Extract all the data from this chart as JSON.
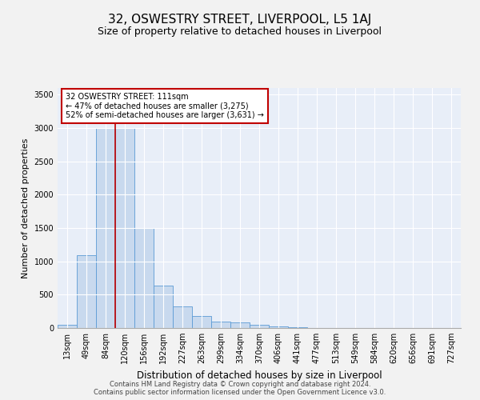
{
  "title": "32, OSWESTRY STREET, LIVERPOOL, L5 1AJ",
  "subtitle": "Size of property relative to detached houses in Liverpool",
  "xlabel": "Distribution of detached houses by size in Liverpool",
  "ylabel": "Number of detached properties",
  "categories": [
    "13sqm",
    "49sqm",
    "84sqm",
    "120sqm",
    "156sqm",
    "192sqm",
    "227sqm",
    "263sqm",
    "299sqm",
    "334sqm",
    "370sqm",
    "406sqm",
    "441sqm",
    "477sqm",
    "513sqm",
    "549sqm",
    "584sqm",
    "620sqm",
    "656sqm",
    "691sqm",
    "727sqm"
  ],
  "values": [
    50,
    1090,
    3000,
    3000,
    1500,
    640,
    330,
    175,
    95,
    80,
    45,
    20,
    10,
    5,
    3,
    2,
    2,
    1,
    1,
    0,
    0
  ],
  "bar_color": "#c8d9ee",
  "bar_edge_color": "#5b9bd5",
  "background_color": "#e8eef8",
  "grid_color": "#ffffff",
  "vline_color": "#c00000",
  "vline_pos": 2.5,
  "annotation_text": "32 OSWESTRY STREET: 111sqm\n← 47% of detached houses are smaller (3,275)\n52% of semi-detached houses are larger (3,631) →",
  "annotation_box_color": "#ffffff",
  "annotation_box_edge": "#c00000",
  "footer_line1": "Contains HM Land Registry data © Crown copyright and database right 2024.",
  "footer_line2": "Contains public sector information licensed under the Open Government Licence v3.0.",
  "ylim": [
    0,
    3600
  ],
  "yticks": [
    0,
    500,
    1000,
    1500,
    2000,
    2500,
    3000,
    3500
  ],
  "title_fontsize": 11,
  "subtitle_fontsize": 9,
  "xlabel_fontsize": 8.5,
  "ylabel_fontsize": 8,
  "tick_fontsize": 7,
  "annotation_fontsize": 7,
  "footer_fontsize": 6
}
